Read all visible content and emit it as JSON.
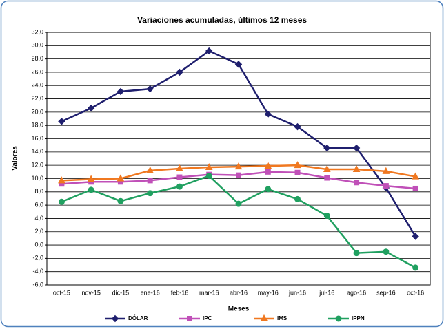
{
  "chart_data": {
    "type": "line",
    "title": "Variaciones acumuladas, últimos 12 meses",
    "x_label": "Meses",
    "y_label": "Valores",
    "categories": [
      "oct-15",
      "nov-15",
      "dic-15",
      "ene-16",
      "feb-16",
      "mar-16",
      "abr-16",
      "may-16",
      "jun-16",
      "jul-16",
      "ago-16",
      "sep-16",
      "oct-16"
    ],
    "series": [
      {
        "name": "DÓLAR",
        "color": "#1f1f6e",
        "marker": "diamond",
        "values": [
          18.6,
          20.6,
          23.1,
          23.5,
          26.0,
          29.2,
          27.2,
          19.7,
          17.8,
          14.6,
          14.6,
          8.6,
          1.3
        ]
      },
      {
        "name": "IPC",
        "color": "#c050b8",
        "marker": "square",
        "values": [
          9.2,
          9.5,
          9.5,
          9.7,
          10.2,
          10.6,
          10.5,
          11.0,
          10.9,
          10.1,
          9.4,
          8.9,
          8.5
        ]
      },
      {
        "name": "IMS",
        "color": "#f07820",
        "marker": "triangle",
        "values": [
          9.7,
          9.9,
          10.0,
          11.2,
          11.5,
          11.7,
          11.8,
          11.9,
          12.0,
          11.4,
          11.4,
          11.1,
          10.3
        ]
      },
      {
        "name": "IPPN",
        "color": "#20a060",
        "marker": "circle",
        "values": [
          6.5,
          8.3,
          6.6,
          7.8,
          8.8,
          10.4,
          6.2,
          8.4,
          6.9,
          4.4,
          -1.2,
          -1.0,
          -3.4
        ]
      }
    ],
    "ylim": [
      -6,
      32
    ],
    "yticks": [
      {
        "value": -6,
        "label": "-6,0"
      },
      {
        "value": -4,
        "label": "-4,0"
      },
      {
        "value": -2,
        "label": "-2,0"
      },
      {
        "value": 0,
        "label": "0,0"
      },
      {
        "value": 2,
        "label": "2,0"
      },
      {
        "value": 4,
        "label": "4,0"
      },
      {
        "value": 6,
        "label": "6,0"
      },
      {
        "value": 8,
        "label": "8,0"
      },
      {
        "value": 10,
        "label": "10,0"
      },
      {
        "value": 12,
        "label": "12,0"
      },
      {
        "value": 14,
        "label": "14,0"
      },
      {
        "value": 16,
        "label": "16,0"
      },
      {
        "value": 18,
        "label": "18,0"
      },
      {
        "value": 20,
        "label": "20,0"
      },
      {
        "value": 22,
        "label": "22,0"
      },
      {
        "value": 24,
        "label": "24,0"
      },
      {
        "value": 26,
        "label": "26,0"
      },
      {
        "value": 28,
        "label": "28,0"
      },
      {
        "value": 30,
        "label": "30,0"
      },
      {
        "value": 32,
        "label": "32,0"
      }
    ],
    "grid": true,
    "legend": "bottom"
  }
}
